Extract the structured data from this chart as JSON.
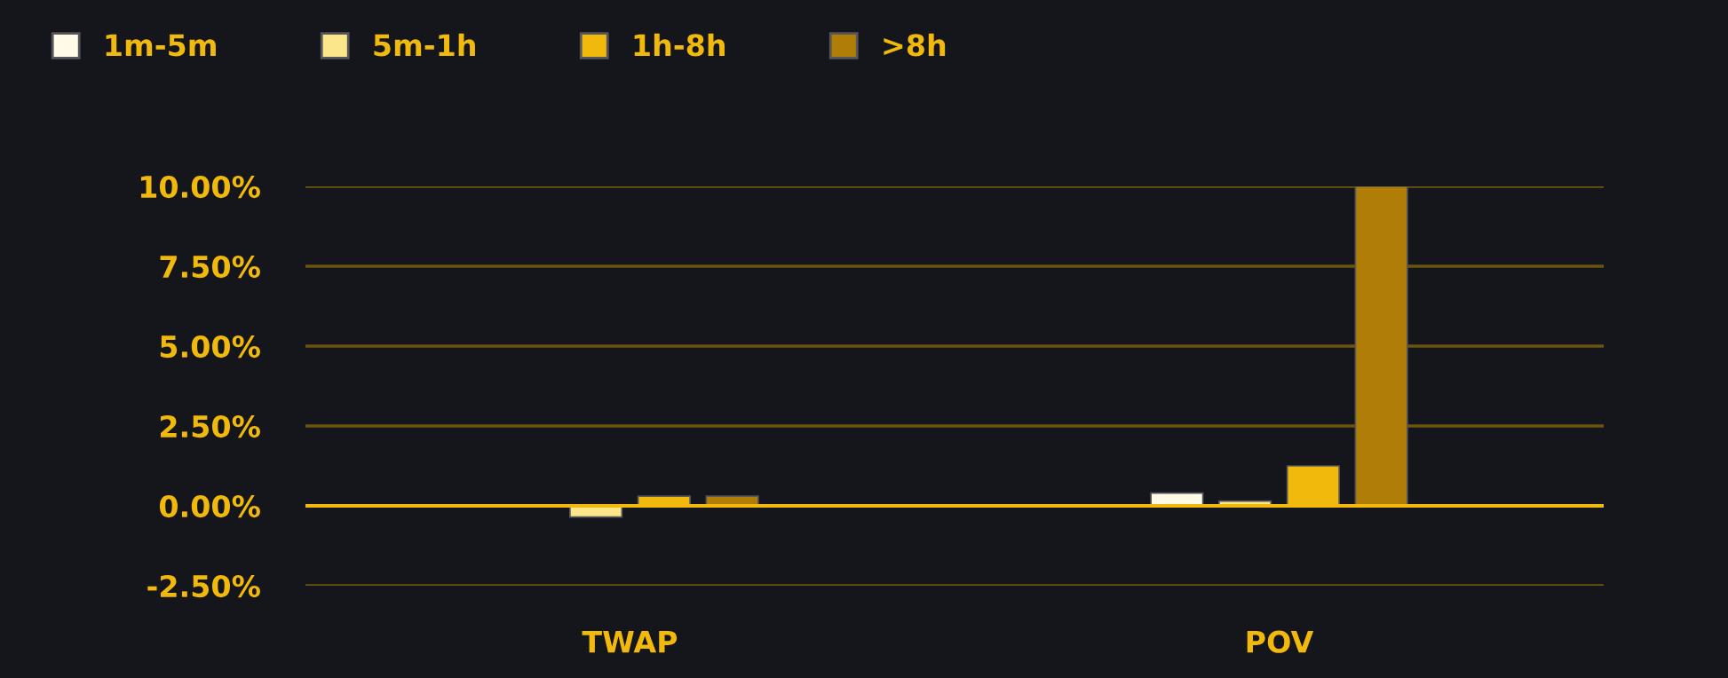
{
  "chart_data": {
    "type": "bar",
    "categories": [
      "TWAP",
      "POV"
    ],
    "series": [
      {
        "name": "1m-5m",
        "color": "#fffbe6",
        "values": [
          null,
          0.4
        ]
      },
      {
        "name": "5m-1h",
        "color": "#fce68a",
        "values": [
          -0.35,
          0.15
        ]
      },
      {
        "name": "1h-8h",
        "color": "#f0b90b",
        "values": [
          0.3,
          1.25
        ]
      },
      {
        "name": ">8h",
        "color": "#b07d07",
        "values": [
          0.3,
          10.0
        ]
      }
    ],
    "ylim": [
      -2.5,
      10
    ],
    "yticks": [
      {
        "value": -2.5,
        "label": "-2.50%"
      },
      {
        "value": 0,
        "label": "0.00%"
      },
      {
        "value": 2.5,
        "label": "2.50%"
      },
      {
        "value": 5,
        "label": "5.00%"
      },
      {
        "value": 7.5,
        "label": "7.50%"
      },
      {
        "value": 10,
        "label": "10.00%"
      }
    ],
    "grid": "y",
    "ref_lines": [
      {
        "axis": "y",
        "value": 0,
        "color": "#f0b90b"
      }
    ],
    "legend": "top left"
  }
}
